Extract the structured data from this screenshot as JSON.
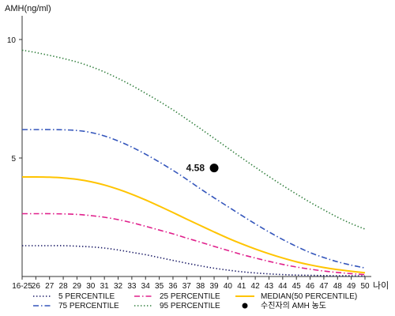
{
  "chart_data": {
    "type": "line",
    "title": "",
    "xlabel": "나이",
    "ylabel": "AMH(ng/ml)",
    "ylim": [
      0,
      11
    ],
    "yticks": [
      5,
      10
    ],
    "categories": [
      "16-25",
      "26",
      "27",
      "28",
      "29",
      "30",
      "31",
      "32",
      "33",
      "34",
      "35",
      "36",
      "37",
      "38",
      "39",
      "40",
      "41",
      "42",
      "43",
      "44",
      "45",
      "46",
      "47",
      "48",
      "49",
      "50"
    ],
    "grid": false,
    "legend_position": "bottom",
    "series": [
      {
        "name": "5 PERCENTILE",
        "color": "#1a1a66",
        "dash": "dotted",
        "values": [
          1.3,
          1.3,
          1.3,
          1.3,
          1.28,
          1.25,
          1.2,
          1.12,
          1.02,
          0.92,
          0.8,
          0.68,
          0.56,
          0.45,
          0.35,
          0.27,
          0.2,
          0.15,
          0.11,
          0.08,
          0.06,
          0.05,
          0.04,
          0.03,
          0.03,
          0.02
        ]
      },
      {
        "name": "25 PERCENTILE",
        "color": "#e0208c",
        "dash": "dash-dot",
        "values": [
          2.65,
          2.65,
          2.65,
          2.64,
          2.62,
          2.57,
          2.5,
          2.4,
          2.27,
          2.12,
          1.96,
          1.8,
          1.62,
          1.45,
          1.27,
          1.1,
          0.93,
          0.78,
          0.64,
          0.51,
          0.4,
          0.31,
          0.23,
          0.17,
          0.12,
          0.08
        ]
      },
      {
        "name": "MEDIAN(50 PERCENTILE)",
        "color": "#ffc400",
        "dash": "solid",
        "values": [
          4.2,
          4.2,
          4.19,
          4.16,
          4.1,
          4.0,
          3.86,
          3.68,
          3.47,
          3.23,
          2.97,
          2.7,
          2.42,
          2.15,
          1.88,
          1.62,
          1.38,
          1.16,
          0.96,
          0.78,
          0.62,
          0.49,
          0.38,
          0.29,
          0.22,
          0.16
        ]
      },
      {
        "name": "75 PERCENTILE",
        "color": "#3355bb",
        "dash": "dash-dot",
        "values": [
          6.2,
          6.2,
          6.2,
          6.19,
          6.16,
          6.08,
          5.93,
          5.72,
          5.46,
          5.16,
          4.83,
          4.48,
          4.1,
          3.7,
          3.32,
          2.95,
          2.58,
          2.22,
          1.88,
          1.56,
          1.27,
          1.01,
          0.8,
          0.62,
          0.48,
          0.36
        ]
      },
      {
        "name": "95 PERCENTILE",
        "color": "#2e7d3a",
        "dash": "dotted",
        "values": [
          9.55,
          9.45,
          9.33,
          9.2,
          9.05,
          8.86,
          8.63,
          8.36,
          8.06,
          7.73,
          7.39,
          7.03,
          6.64,
          6.24,
          5.83,
          5.42,
          5.01,
          4.61,
          4.22,
          3.84,
          3.48,
          3.13,
          2.81,
          2.5,
          2.23,
          2.0
        ]
      }
    ],
    "patient_point": {
      "name": "수진자의 AMH 농도",
      "x": "39",
      "y": 4.58,
      "label": "4.58",
      "color": "#000000"
    },
    "legend_order": [
      "5 PERCENTILE",
      "25 PERCENTILE",
      "MEDIAN(50 PERCENTILE)",
      "75 PERCENTILE",
      "95 PERCENTILE",
      "수진자의 AMH 농도"
    ]
  }
}
